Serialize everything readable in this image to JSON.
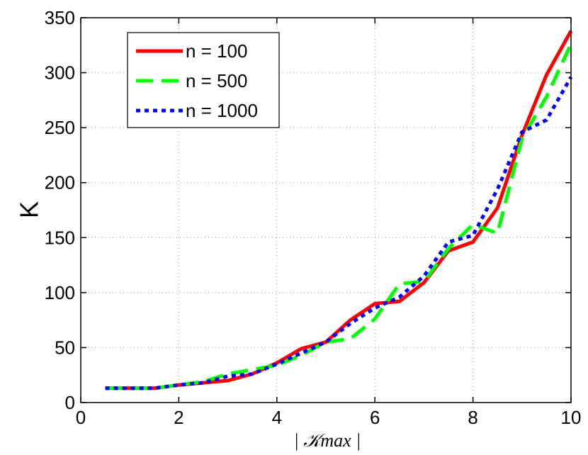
{
  "chart_data": {
    "type": "line",
    "xlabel": "| 𝒦max |",
    "ylabel": "K",
    "xlim": [
      0,
      10
    ],
    "ylim": [
      0,
      350
    ],
    "xticks": [
      0,
      2,
      4,
      6,
      8,
      10
    ],
    "yticks": [
      0,
      50,
      100,
      150,
      200,
      250,
      300,
      350
    ],
    "grid": true,
    "legend_position": "top-left",
    "series": [
      {
        "name": "n = 100",
        "color": "#ff0000",
        "style": "solid",
        "x": [
          0.5,
          1,
          1.5,
          2,
          2.5,
          3,
          3.5,
          4,
          4.5,
          5,
          5.5,
          6,
          6.5,
          7,
          7.5,
          8,
          8.5,
          9,
          9.5,
          10
        ],
        "y": [
          13,
          13,
          13,
          16,
          18,
          20,
          26,
          36,
          49,
          55,
          75,
          90,
          92,
          109,
          138,
          146,
          177,
          243,
          298,
          338
        ]
      },
      {
        "name": "n = 500",
        "color": "#00ff00",
        "style": "dashed",
        "x": [
          0.5,
          1,
          1.5,
          2,
          2.5,
          3,
          3.5,
          4,
          4.5,
          5,
          5.5,
          6,
          6.5,
          7,
          7.5,
          8,
          8.5,
          9,
          9.5,
          10
        ],
        "y": [
          13,
          13,
          13,
          16,
          19,
          26,
          30,
          34,
          43,
          55,
          58,
          76,
          108,
          110,
          140,
          162,
          154,
          240,
          278,
          326
        ]
      },
      {
        "name": "n = 1000",
        "color": "#0000ff",
        "style": "dotted",
        "x": [
          0.5,
          1,
          1.5,
          2,
          2.5,
          3,
          3.5,
          4,
          4.5,
          5,
          5.5,
          6,
          6.5,
          7,
          7.5,
          8,
          8.5,
          9,
          9.5,
          10
        ],
        "y": [
          13,
          13,
          13,
          16,
          18,
          24,
          26,
          35,
          45,
          55,
          72,
          86,
          96,
          115,
          146,
          152,
          194,
          246,
          257,
          296
        ]
      }
    ]
  }
}
